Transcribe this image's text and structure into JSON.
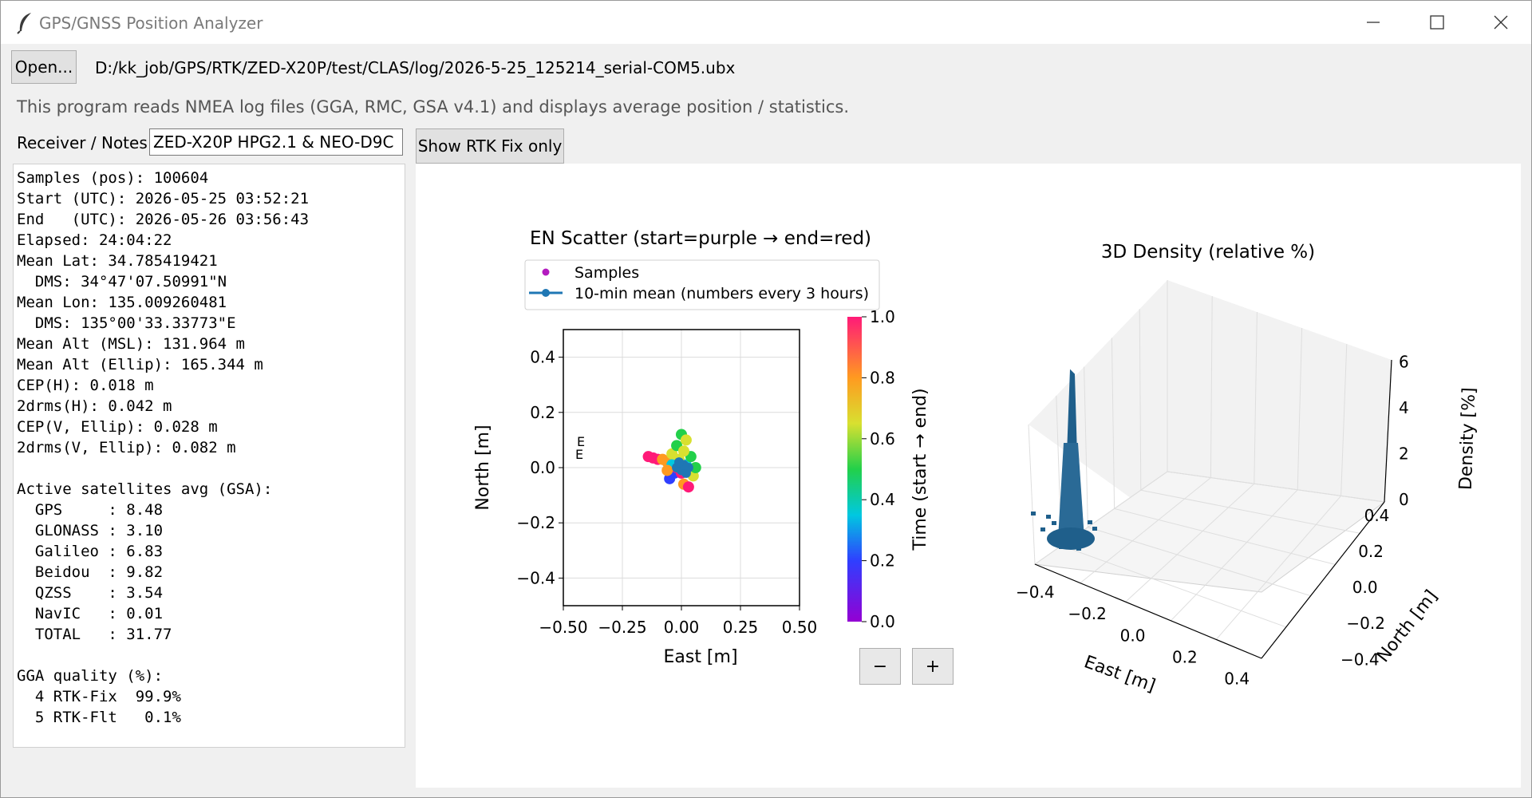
{
  "window": {
    "title": "GPS/GNSS Position Analyzer"
  },
  "toolbar": {
    "open_label": "Open...",
    "file_path": "D:/kk_job/GPS/RTK/ZED-X20P/test/CLAS/log/2026-5-25_125214_serial-COM5.ubx",
    "description": "This program reads NMEA log files (GGA, RMC, GSA v4.1) and displays average position / statistics.",
    "notes_label": "Receiver / Notes:",
    "notes_value": "ZED-X20P HPG2.1 & NEO-D9C",
    "rtk_button_label": "Show RTK Fix only"
  },
  "stats": {
    "lines": [
      "Samples (pos): 100604",
      "Start (UTC): 2026-05-25 03:52:21",
      "End   (UTC): 2026-05-26 03:56:43",
      "Elapsed: 24:04:22",
      "Mean Lat: 34.785419421",
      "  DMS: 34°47'07.50991\"N",
      "Mean Lon: 135.009260481",
      "  DMS: 135°00'33.33773\"E",
      "Mean Alt (MSL): 131.964 m",
      "Mean Alt (Ellip): 165.344 m",
      "CEP(H): 0.018 m",
      "2drms(H): 0.042 m",
      "CEP(V, Ellip): 0.028 m",
      "2drms(V, Ellip): 0.082 m",
      "",
      "Active satellites avg (GSA):",
      "  GPS     : 8.48",
      "  GLONASS : 3.10",
      "  Galileo : 6.83",
      "  Beidou  : 9.82",
      "  QZSS    : 3.54",
      "  NavIC   : 0.01",
      "  TOTAL   : 31.77",
      "",
      "GGA quality (%):",
      "  4 RTK-Fix  99.9%",
      "  5 RTK-Flt   0.1%"
    ]
  },
  "zoom": {
    "minus": "−",
    "plus": "+"
  },
  "chart_data": [
    {
      "type": "scatter",
      "title": "EN Scatter (start=purple → end=red)",
      "xlabel": "East [m]",
      "ylabel": "North [m]",
      "xlim": [
        -0.5,
        0.5
      ],
      "ylim": [
        -0.5,
        0.5
      ],
      "xticks": [
        "−0.50",
        "−0.25",
        "0.00",
        "0.25",
        "0.50"
      ],
      "yticks": [
        "0.4",
        "0.2",
        "0.0",
        "−0.2",
        "−0.4"
      ],
      "grid": true,
      "legend": {
        "placement": "top",
        "entries": [
          "Samples",
          "10-min mean (numbers every 3 hours)"
        ]
      },
      "colorbar": {
        "label": "Time (start → end)",
        "ticks": [
          "1.0",
          "0.8",
          "0.6",
          "0.4",
          "0.2",
          "0.0"
        ]
      },
      "colors": {
        "samples_marker": "#b31bbf",
        "mean_line": "#1f77b4"
      },
      "mean_track_labels": [
        "E",
        "E"
      ],
      "points": [
        {
          "x": -0.14,
          "y": 0.04,
          "t": 0.86
        },
        {
          "x": -0.12,
          "y": 0.035,
          "t": 0.84
        },
        {
          "x": -0.1,
          "y": 0.03,
          "t": 0.82
        },
        {
          "x": -0.08,
          "y": 0.03,
          "t": 0.8
        },
        {
          "x": -0.06,
          "y": 0.02,
          "t": 0.7
        },
        {
          "x": -0.04,
          "y": 0.05,
          "t": 0.55
        },
        {
          "x": -0.02,
          "y": 0.08,
          "t": 0.45
        },
        {
          "x": 0.0,
          "y": 0.12,
          "t": 0.5
        },
        {
          "x": 0.02,
          "y": 0.1,
          "t": 0.52
        },
        {
          "x": -0.03,
          "y": -0.02,
          "t": 0.2
        },
        {
          "x": -0.05,
          "y": -0.04,
          "t": 0.15
        },
        {
          "x": 0.01,
          "y": -0.06,
          "t": 0.78
        },
        {
          "x": 0.03,
          "y": -0.07,
          "t": 0.9
        },
        {
          "x": 0.05,
          "y": -0.03,
          "t": 0.6
        },
        {
          "x": -0.02,
          "y": 0.0,
          "t": 0.95
        },
        {
          "x": 0.0,
          "y": -0.02,
          "t": 0.92
        },
        {
          "x": 0.02,
          "y": 0.01,
          "t": 0.35
        },
        {
          "x": -0.01,
          "y": 0.03,
          "t": 0.65
        },
        {
          "x": 0.04,
          "y": 0.04,
          "t": 0.4
        },
        {
          "x": -0.04,
          "y": 0.01,
          "t": 0.3
        },
        {
          "x": 0.01,
          "y": 0.06,
          "t": 0.58
        },
        {
          "x": -0.06,
          "y": -0.01,
          "t": 0.72
        },
        {
          "x": 0.06,
          "y": 0.0,
          "t": 0.48
        },
        {
          "x": 0.0,
          "y": 0.0,
          "t": 0.1
        }
      ],
      "mean_track": [
        {
          "x": -0.02,
          "y": 0.0
        },
        {
          "x": 0.0,
          "y": -0.01
        },
        {
          "x": 0.02,
          "y": -0.02
        },
        {
          "x": 0.03,
          "y": 0.0
        },
        {
          "x": 0.01,
          "y": 0.01
        },
        {
          "x": -0.01,
          "y": 0.02
        }
      ]
    },
    {
      "type": "bar3d",
      "title": "3D Density (relative %)",
      "xlabel": "East [m]",
      "ylabel": "North [m]",
      "zlabel": "Density [%]",
      "xticks": [
        "−0.4",
        "−0.2",
        "0.0",
        "0.2",
        "0.4"
      ],
      "yticks": [
        "0.4",
        "0.2",
        "0.0",
        "−0.2",
        "−0.4"
      ],
      "zticks": [
        "6",
        "4",
        "2",
        "0"
      ],
      "zlim": [
        0,
        6
      ],
      "colors": {
        "bars": "#1f5f8b"
      },
      "peak_density_percent": 5.0
    }
  ]
}
